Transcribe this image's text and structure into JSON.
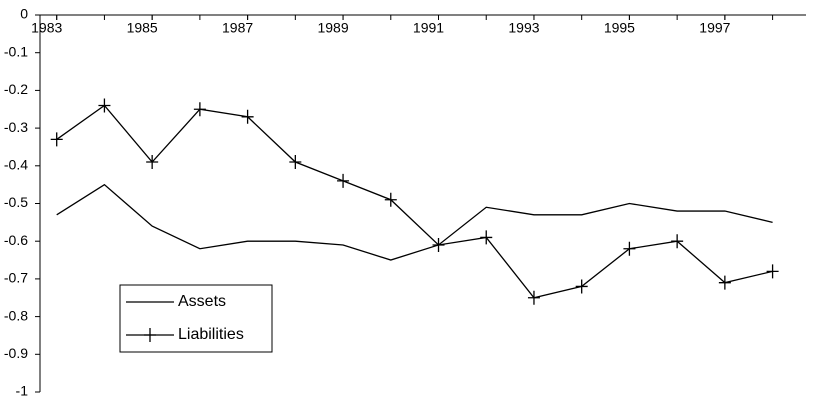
{
  "chart_data": {
    "type": "line",
    "x": [
      1983,
      1984,
      1985,
      1986,
      1987,
      1988,
      1989,
      1990,
      1991,
      1992,
      1993,
      1994,
      1995,
      1996,
      1997,
      1998
    ],
    "xlim": [
      1982.65,
      1998.7
    ],
    "xticks": [
      1983,
      1985,
      1987,
      1989,
      1991,
      1993,
      1995,
      1997
    ],
    "ylim": [
      -1,
      0
    ],
    "yticks": [
      0,
      -0.1,
      -0.2,
      -0.3,
      -0.4,
      -0.5,
      -0.6,
      -0.7,
      -0.8,
      -0.9,
      -1
    ],
    "legend": "lower-left",
    "series": [
      {
        "name": "Assets",
        "color": "#000000",
        "marker": "none",
        "values": [
          -0.53,
          -0.45,
          -0.56,
          -0.62,
          -0.6,
          -0.6,
          -0.61,
          -0.65,
          -0.61,
          -0.51,
          -0.53,
          -0.53,
          -0.5,
          -0.52,
          -0.52,
          -0.55
        ]
      },
      {
        "name": "Liabilities",
        "color": "#000000",
        "marker": "plus",
        "values": [
          -0.33,
          -0.24,
          -0.39,
          -0.25,
          -0.27,
          -0.39,
          -0.44,
          -0.49,
          -0.61,
          -0.59,
          -0.75,
          -0.72,
          -0.62,
          -0.6,
          -0.71,
          -0.68
        ]
      }
    ]
  }
}
